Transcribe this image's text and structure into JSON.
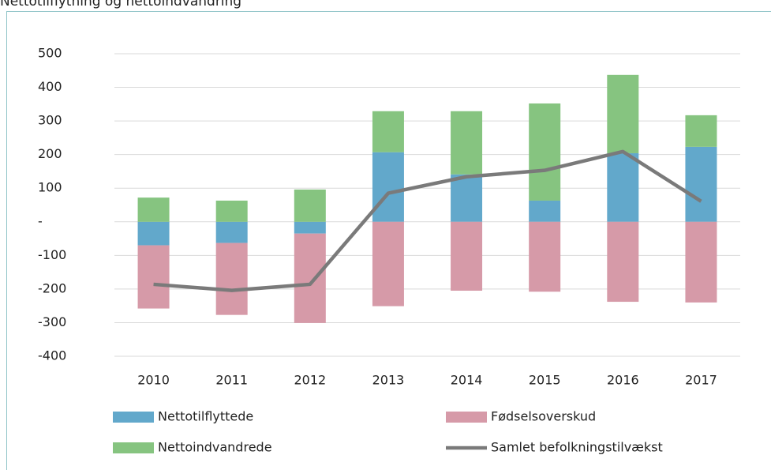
{
  "chart_data": {
    "type": "bar",
    "title": "Nettotilflytning og nettoindvandring",
    "categories": [
      "2010",
      "2011",
      "2012",
      "2013",
      "2014",
      "2015",
      "2016",
      "2017"
    ],
    "series": [
      {
        "name": "Nettotilflyttede",
        "color": "#62a8cb",
        "values": [
          -70,
          -63,
          -35,
          207,
          141,
          63,
          204,
          223
        ]
      },
      {
        "name": "Fødselsoverskud",
        "color": "#d69aa8",
        "values": [
          -188,
          -214,
          -266,
          -251,
          -205,
          -208,
          -238,
          -240
        ]
      },
      {
        "name": "Nettoindvandrede",
        "color": "#86c480",
        "values": [
          72,
          63,
          96,
          122,
          188,
          289,
          233,
          94
        ]
      },
      {
        "name": "Samlet befolkningstilvækst",
        "type": "line",
        "color": "#7a7a7a",
        "values": [
          -186,
          -204,
          -186,
          85,
          134,
          153,
          209,
          61
        ]
      }
    ],
    "ylim": [
      -400,
      500
    ],
    "yticks": [
      -400,
      -300,
      -200,
      -100,
      {
        "value": 0,
        "label": "-"
      },
      100,
      200,
      300,
      400,
      500
    ],
    "grid": true
  }
}
